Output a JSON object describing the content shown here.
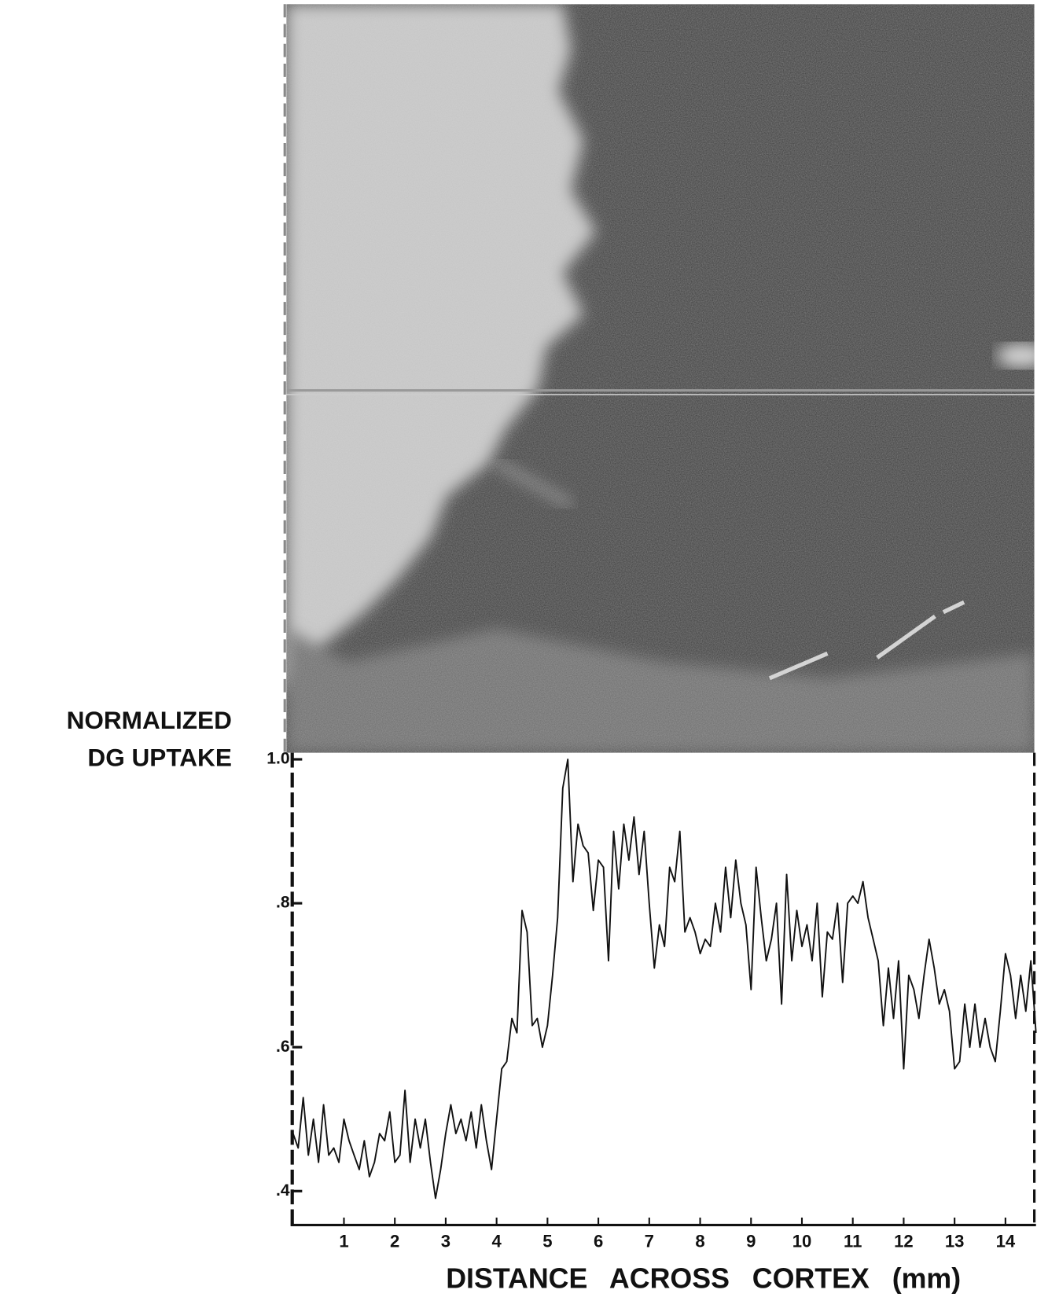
{
  "chart_data": {
    "type": "line",
    "y_label": [
      "NORMALIZED",
      "DG UPTAKE"
    ],
    "x_label": "DISTANCE ACROSS CORTEX (mm)",
    "x": [
      0,
      0.1,
      0.2,
      0.3,
      0.4,
      0.5,
      0.6,
      0.7,
      0.8,
      0.9,
      1,
      1.1,
      1.2,
      1.3,
      1.4,
      1.5,
      1.6,
      1.7,
      1.8,
      1.9,
      2,
      2.1,
      2.2,
      2.3,
      2.4,
      2.5,
      2.6,
      2.7,
      2.8,
      2.9,
      3,
      3.1,
      3.2,
      3.3,
      3.4,
      3.5,
      3.6,
      3.7,
      3.8,
      3.9,
      4,
      4.1,
      4.2,
      4.3,
      4.4,
      4.5,
      4.6,
      4.7,
      4.8,
      4.9,
      5,
      5.1,
      5.2,
      5.3,
      5.4,
      5.5,
      5.6,
      5.7,
      5.8,
      5.9,
      6,
      6.1,
      6.2,
      6.3,
      6.4,
      6.5,
      6.6,
      6.7,
      6.8,
      6.9,
      7,
      7.1,
      7.2,
      7.3,
      7.4,
      7.5,
      7.6,
      7.7,
      7.8,
      7.9,
      8,
      8.1,
      8.2,
      8.3,
      8.4,
      8.5,
      8.6,
      8.7,
      8.8,
      8.9,
      9,
      9.1,
      9.2,
      9.3,
      9.4,
      9.5,
      9.6,
      9.7,
      9.8,
      9.9,
      10,
      10.1,
      10.2,
      10.3,
      10.4,
      10.5,
      10.6,
      10.7,
      10.8,
      10.9,
      11,
      11.1,
      11.2,
      11.3,
      11.4,
      11.5,
      11.6,
      11.7,
      11.8,
      11.9,
      12,
      12.1,
      12.2,
      12.3,
      12.4,
      12.5,
      12.6,
      12.7,
      12.8,
      12.9,
      13,
      13.1,
      13.2,
      13.3,
      13.4,
      13.5,
      13.6,
      13.7,
      13.8,
      13.9,
      14,
      14.1,
      14.2,
      14.3,
      14.4,
      14.5,
      14.6
    ],
    "series": [
      {
        "color": "#111111",
        "values": [
          0.48,
          0.46,
          0.53,
          0.45,
          0.5,
          0.44,
          0.52,
          0.45,
          0.46,
          0.44,
          0.5,
          0.47,
          0.45,
          0.43,
          0.47,
          0.42,
          0.44,
          0.48,
          0.47,
          0.51,
          0.44,
          0.45,
          0.54,
          0.44,
          0.5,
          0.46,
          0.5,
          0.44,
          0.39,
          0.43,
          0.48,
          0.52,
          0.48,
          0.5,
          0.47,
          0.51,
          0.46,
          0.52,
          0.47,
          0.43,
          0.5,
          0.57,
          0.58,
          0.64,
          0.62,
          0.79,
          0.76,
          0.63,
          0.64,
          0.6,
          0.63,
          0.7,
          0.78,
          0.96,
          1.0,
          0.83,
          0.91,
          0.88,
          0.87,
          0.79,
          0.86,
          0.85,
          0.72,
          0.9,
          0.82,
          0.91,
          0.86,
          0.92,
          0.84,
          0.9,
          0.8,
          0.71,
          0.77,
          0.74,
          0.85,
          0.83,
          0.9,
          0.76,
          0.78,
          0.76,
          0.73,
          0.75,
          0.74,
          0.8,
          0.76,
          0.85,
          0.78,
          0.86,
          0.8,
          0.77,
          0.68,
          0.85,
          0.78,
          0.72,
          0.75,
          0.8,
          0.66,
          0.84,
          0.72,
          0.79,
          0.74,
          0.77,
          0.72,
          0.8,
          0.67,
          0.76,
          0.75,
          0.8,
          0.69,
          0.8,
          0.81,
          0.8,
          0.83,
          0.78,
          0.75,
          0.72,
          0.63,
          0.71,
          0.64,
          0.72,
          0.57,
          0.7,
          0.68,
          0.64,
          0.7,
          0.75,
          0.71,
          0.66,
          0.68,
          0.65,
          0.57,
          0.58,
          0.66,
          0.6,
          0.66,
          0.6,
          0.64,
          0.6,
          0.58,
          0.65,
          0.73,
          0.7,
          0.64,
          0.7,
          0.65,
          0.72,
          0.62
        ]
      }
    ],
    "xlim": [
      0,
      14.6
    ],
    "xticks": [
      1,
      2,
      3,
      4,
      5,
      6,
      7,
      8,
      9,
      10,
      11,
      12,
      13,
      14
    ],
    "ylim": [
      0.354,
      1.0
    ],
    "yticks": [
      {
        "value": 0.4,
        "label": ".4"
      },
      {
        "value": 0.6,
        "label": ".6"
      },
      {
        "value": 0.8,
        "label": ".8"
      },
      {
        "value": 1.0,
        "label": "1.0"
      }
    ]
  }
}
